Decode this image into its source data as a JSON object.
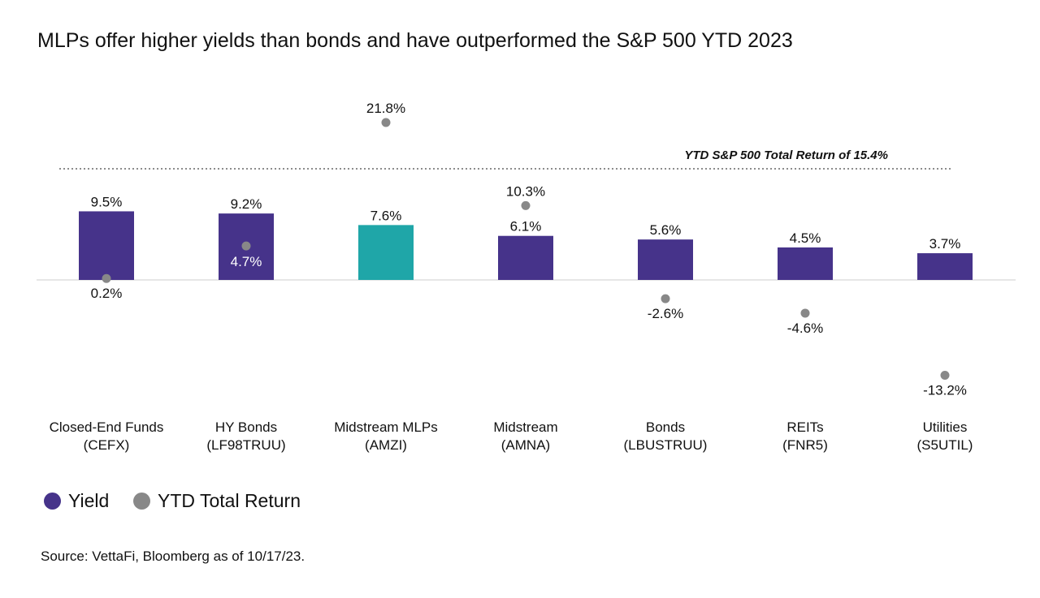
{
  "title": "MLPs offer higher yields than bonds and have outperformed the S&P 500 YTD 2023",
  "colors": {
    "yield": "#46338a",
    "highlight": "#1fa6a8",
    "return_dot": "#888888",
    "reference_line": "#666666"
  },
  "legend": {
    "yield_label": "Yield",
    "return_label": "YTD Total Return"
  },
  "source": "Source: VettaFi, Bloomberg as of 10/17/23.",
  "chart_data": {
    "type": "bar",
    "categories": [
      {
        "name": "Closed-End Funds",
        "ticker": "(CEFX)"
      },
      {
        "name": "HY Bonds",
        "ticker": "(LF98TRUU)"
      },
      {
        "name": "Midstream MLPs",
        "ticker": "(AMZI)"
      },
      {
        "name": "Midstream",
        "ticker": "(AMNA)"
      },
      {
        "name": "Bonds",
        "ticker": "(LBUSTRUU)"
      },
      {
        "name": "REITs",
        "ticker": "(FNR5)"
      },
      {
        "name": "Utilities",
        "ticker": "(S5UTIL)"
      }
    ],
    "series": [
      {
        "name": "Yield",
        "values": [
          9.5,
          9.2,
          7.6,
          6.1,
          5.6,
          4.5,
          3.7
        ],
        "labels": [
          "9.5%",
          "9.2%",
          "7.6%",
          "6.1%",
          "5.6%",
          "4.5%",
          "3.7%"
        ],
        "highlight_index": 2
      },
      {
        "name": "YTD Total Return",
        "values": [
          0.2,
          4.7,
          21.8,
          10.3,
          -2.6,
          -4.6,
          -13.2
        ],
        "labels": [
          "0.2%",
          "4.7%",
          "21.8%",
          "10.3%",
          "-2.6%",
          "-4.6%",
          "-13.2%"
        ]
      }
    ],
    "reference_line": {
      "value": 15.4,
      "label": "YTD S&P 500 Total Return of 15.4%"
    },
    "ylim": [
      -15,
      23
    ],
    "grid": false
  }
}
